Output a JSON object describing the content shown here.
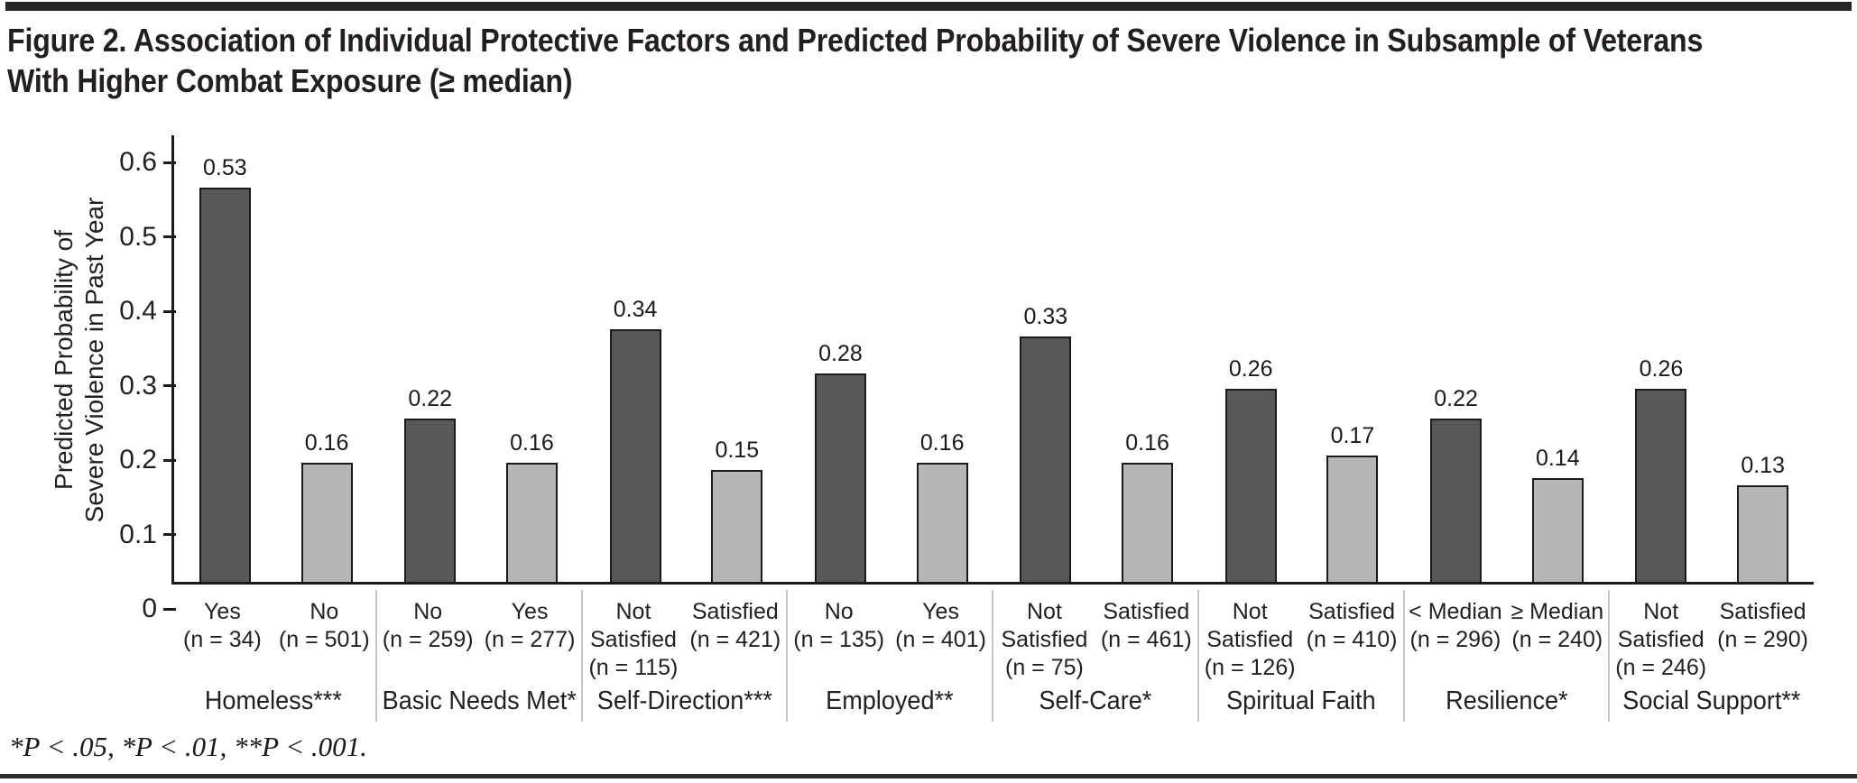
{
  "figure": {
    "title_line1": "Figure 2. Association of Individual Protective Factors and Predicted Probability of Severe Violence in Subsample of Veterans",
    "title_line2": "With Higher Combat Exposure (≥ median)",
    "footnote": "*P < .05, *P < .01, **P < .001."
  },
  "chart_data": {
    "type": "bar",
    "title": "Figure 2. Association of Individual Protective Factors and Predicted Probability of Severe Violence in Subsample of Veterans With Higher Combat Exposure (≥ median)",
    "ylabel_line1": "Predicted Probability of",
    "ylabel_line2": "Severe Violence in Past Year",
    "ylim": [
      0,
      0.6
    ],
    "y_ticks": [
      0,
      0.1,
      0.2,
      0.3,
      0.4,
      0.5,
      0.6
    ],
    "grid": false,
    "legend": "none",
    "colors": {
      "first_bar": "#58585a",
      "second_bar": "#b5b6b8",
      "bar_border": "#1a1a1a"
    },
    "groups": [
      {
        "name": "Homeless***",
        "bars": [
          {
            "label": "Yes",
            "n": "(n = 34)",
            "value": 0.53
          },
          {
            "label": "No",
            "n": "(n = 501)",
            "value": 0.16
          }
        ]
      },
      {
        "name": "Basic Needs Met*",
        "bars": [
          {
            "label": "No",
            "n": "(n = 259)",
            "value": 0.22
          },
          {
            "label": "Yes",
            "n": "(n = 277)",
            "value": 0.16
          }
        ]
      },
      {
        "name": "Self-Direction***",
        "bars": [
          {
            "label": "Not Satisfied",
            "n": "(n = 115)",
            "value": 0.34
          },
          {
            "label": "Satisfied",
            "n": "(n = 421)",
            "value": 0.15
          }
        ]
      },
      {
        "name": "Employed**",
        "bars": [
          {
            "label": "No",
            "n": "(n = 135)",
            "value": 0.28
          },
          {
            "label": "Yes",
            "n": "(n = 401)",
            "value": 0.16
          }
        ]
      },
      {
        "name": "Self-Care*",
        "bars": [
          {
            "label": "Not Satisfied",
            "n": "(n = 75)",
            "value": 0.33
          },
          {
            "label": "Satisfied",
            "n": "(n = 461)",
            "value": 0.16
          }
        ]
      },
      {
        "name": "Spiritual Faith",
        "bars": [
          {
            "label": "Not Satisfied",
            "n": "(n = 126)",
            "value": 0.26
          },
          {
            "label": "Satisfied",
            "n": "(n = 410)",
            "value": 0.17
          }
        ]
      },
      {
        "name": "Resilience*",
        "bars": [
          {
            "label": "< Median",
            "n": "(n = 296)",
            "value": 0.22
          },
          {
            "label": "≥ Median",
            "n": "(n = 240)",
            "value": 0.14
          }
        ]
      },
      {
        "name": "Social Support**",
        "bars": [
          {
            "label": "Not Satisfied",
            "n": "(n = 246)",
            "value": 0.26
          },
          {
            "label": "Satisfied",
            "n": "(n = 290)",
            "value": 0.13
          }
        ]
      }
    ]
  }
}
